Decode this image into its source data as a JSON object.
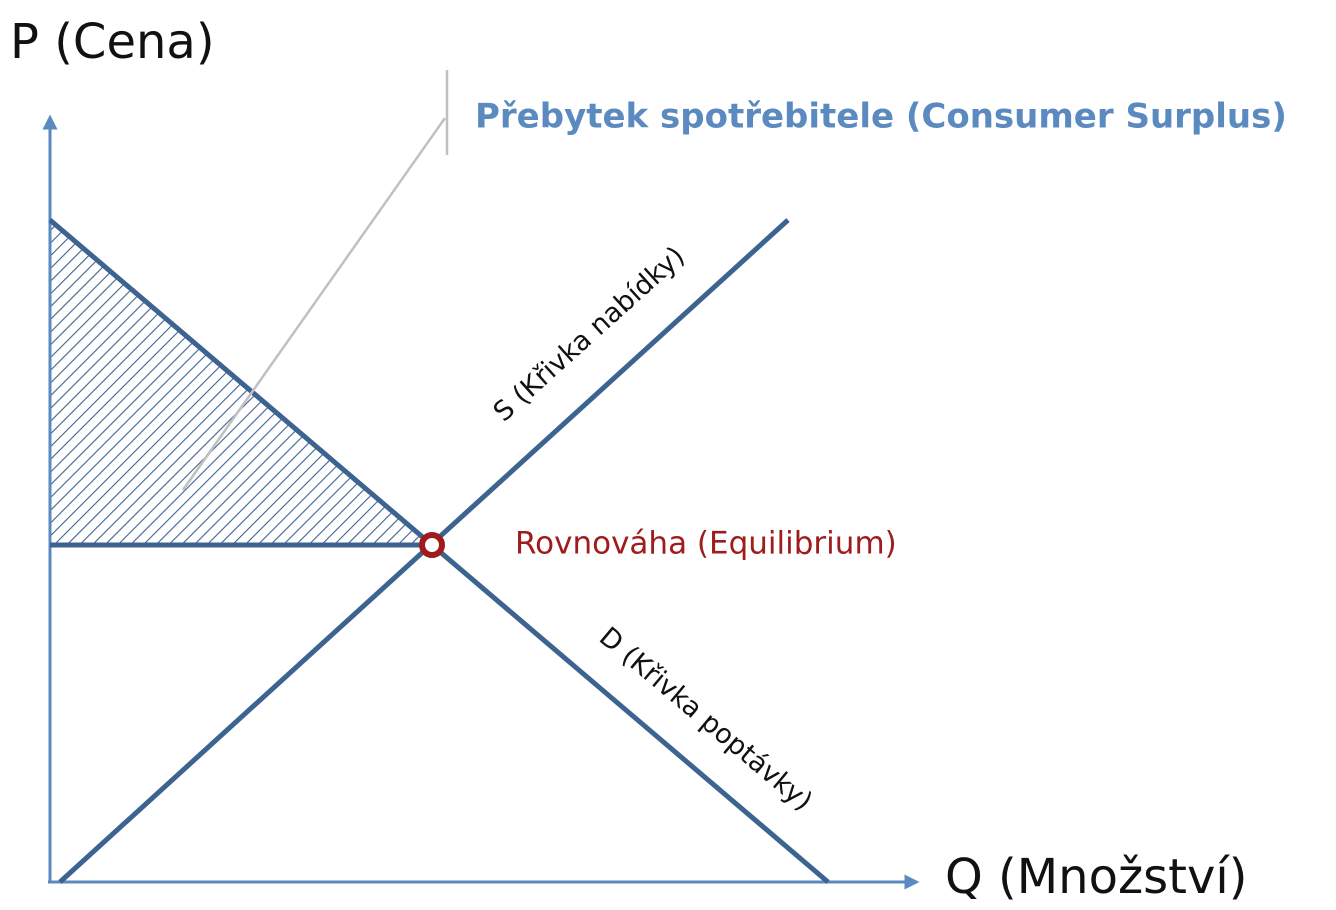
{
  "axes": {
    "y_label": "P (Cena)",
    "x_label": "Q (Množství)"
  },
  "annotation": "Přebytek spotřebitele (Consumer Surplus)",
  "curves": {
    "supply": "S (Křivka nabídky)",
    "demand": "D (Křivka poptávky)"
  },
  "equilibrium": "Rovnováha (Equilibrium)"
}
